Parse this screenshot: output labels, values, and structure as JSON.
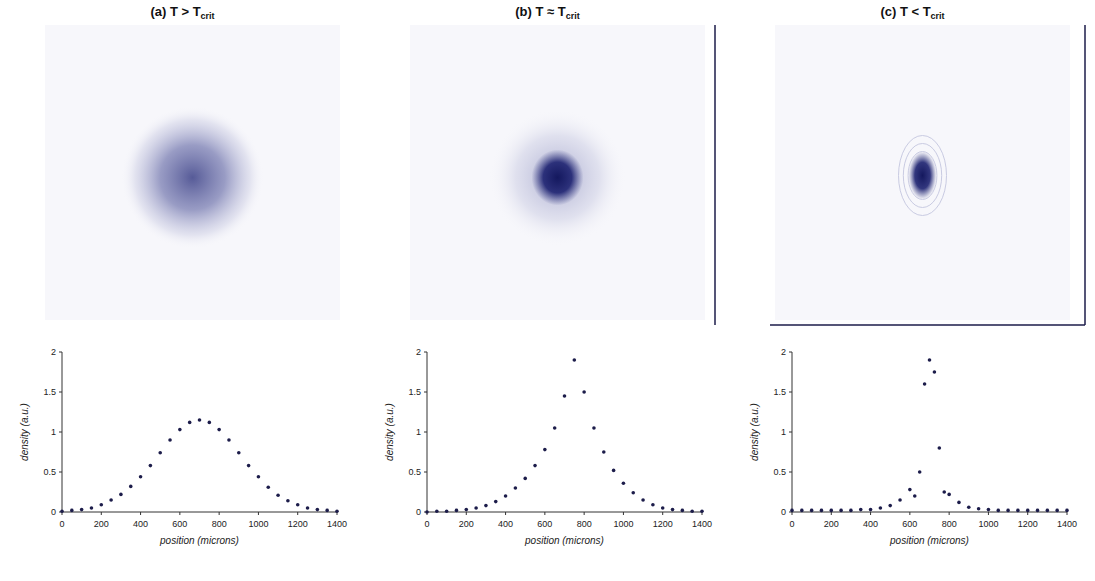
{
  "chart_data": [
    {
      "type": "scatter",
      "title": "(a) T > T",
      "title_subscript": "crit",
      "xlabel": "position (microns)",
      "ylabel": "density (a.u.)",
      "x": [
        0,
        50,
        100,
        150,
        200,
        250,
        300,
        350,
        400,
        450,
        500,
        550,
        600,
        650,
        700,
        750,
        800,
        850,
        900,
        950,
        1000,
        1050,
        1100,
        1150,
        1200,
        1250,
        1300,
        1350,
        1400
      ],
      "values": [
        0.01,
        0.02,
        0.03,
        0.05,
        0.09,
        0.15,
        0.22,
        0.32,
        0.44,
        0.58,
        0.74,
        0.9,
        1.03,
        1.12,
        1.15,
        1.12,
        1.03,
        0.9,
        0.74,
        0.58,
        0.44,
        0.31,
        0.21,
        0.14,
        0.09,
        0.05,
        0.03,
        0.02,
        0.01
      ],
      "xlim": [
        0,
        1400
      ],
      "ylim": [
        0,
        2
      ],
      "xticks": [
        0,
        200,
        400,
        600,
        800,
        1000,
        1200,
        1400
      ],
      "yticks": [
        0,
        0.5,
        1,
        1.5,
        2
      ],
      "color": "#1c1c4a",
      "marker": "dot"
    },
    {
      "type": "scatter",
      "title": "(b) T ≈ T",
      "title_subscript": "crit",
      "xlabel": "position (microns)",
      "ylabel": "density (a.u.)",
      "x": [
        0,
        50,
        100,
        150,
        200,
        250,
        300,
        350,
        400,
        450,
        500,
        550,
        600,
        650,
        700,
        750,
        800,
        850,
        900,
        950,
        1000,
        1050,
        1100,
        1150,
        1200,
        1250,
        1300,
        1350,
        1400
      ],
      "values": [
        0,
        0.01,
        0.01,
        0.02,
        0.03,
        0.05,
        0.08,
        0.13,
        0.2,
        0.3,
        0.42,
        0.58,
        0.78,
        1.05,
        1.45,
        1.9,
        1.5,
        1.05,
        0.75,
        0.52,
        0.36,
        0.24,
        0.15,
        0.09,
        0.05,
        0.03,
        0.02,
        0.01,
        0.01
      ],
      "xlim": [
        0,
        1400
      ],
      "ylim": [
        0,
        2
      ],
      "xticks": [
        0,
        200,
        400,
        600,
        800,
        1000,
        1200,
        1400
      ],
      "yticks": [
        0,
        0.5,
        1,
        1.5,
        2
      ],
      "color": "#1c1c4a",
      "marker": "dot"
    },
    {
      "type": "scatter",
      "title": "(c) T < T",
      "title_subscript": "crit",
      "xlabel": "position (microns)",
      "ylabel": "density (a.u.)",
      "x": [
        0,
        50,
        100,
        150,
        200,
        250,
        300,
        350,
        400,
        450,
        500,
        550,
        600,
        625,
        650,
        675,
        700,
        725,
        750,
        775,
        800,
        850,
        900,
        950,
        1000,
        1050,
        1100,
        1150,
        1200,
        1250,
        1300,
        1350,
        1400
      ],
      "values": [
        0.02,
        0.02,
        0.02,
        0.02,
        0.02,
        0.02,
        0.02,
        0.03,
        0.03,
        0.05,
        0.08,
        0.15,
        0.28,
        0.2,
        0.5,
        1.6,
        1.9,
        1.75,
        0.8,
        0.25,
        0.22,
        0.12,
        0.06,
        0.04,
        0.03,
        0.02,
        0.02,
        0.02,
        0.02,
        0.02,
        0.02,
        0.02,
        0.02
      ],
      "xlim": [
        0,
        1400
      ],
      "ylim": [
        0,
        2
      ],
      "xticks": [
        0,
        200,
        400,
        600,
        800,
        1000,
        1200,
        1400
      ],
      "yticks": [
        0,
        0.5,
        1,
        1.5,
        2
      ],
      "color": "#1c1c4a",
      "marker": "dot"
    }
  ]
}
